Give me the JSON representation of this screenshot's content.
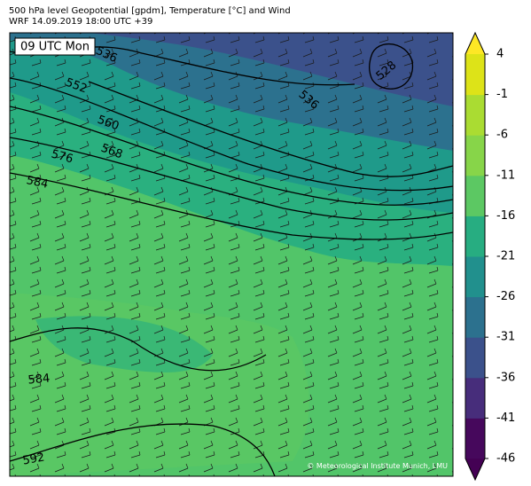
{
  "header": {
    "title": "500 hPa level Geopotential [gpdm], Temperature [°C] and Wind",
    "subtitle": "WRF 14.09.2019 18:00 UTC +39"
  },
  "map": {
    "time_label": "09 UTC Mon",
    "credit": "© Meteorological Institute Munich, LMU",
    "contour_labels": [
      536,
      552,
      560,
      568,
      576,
      584,
      528,
      536,
      584,
      592
    ]
  },
  "colorbar": {
    "lim": [
      -46,
      4
    ],
    "ticks": [
      4,
      -1,
      -6,
      -11,
      -16,
      -21,
      -26,
      -31,
      -36,
      -41,
      -46
    ],
    "colors": [
      "#46085c",
      "#472d7b",
      "#3b518b",
      "#2c718e",
      "#21908d",
      "#27ad81",
      "#5cc863",
      "#87d549",
      "#aadc32",
      "#dde318"
    ],
    "extend_colors": [
      "#440154",
      "#fde725"
    ]
  }
}
